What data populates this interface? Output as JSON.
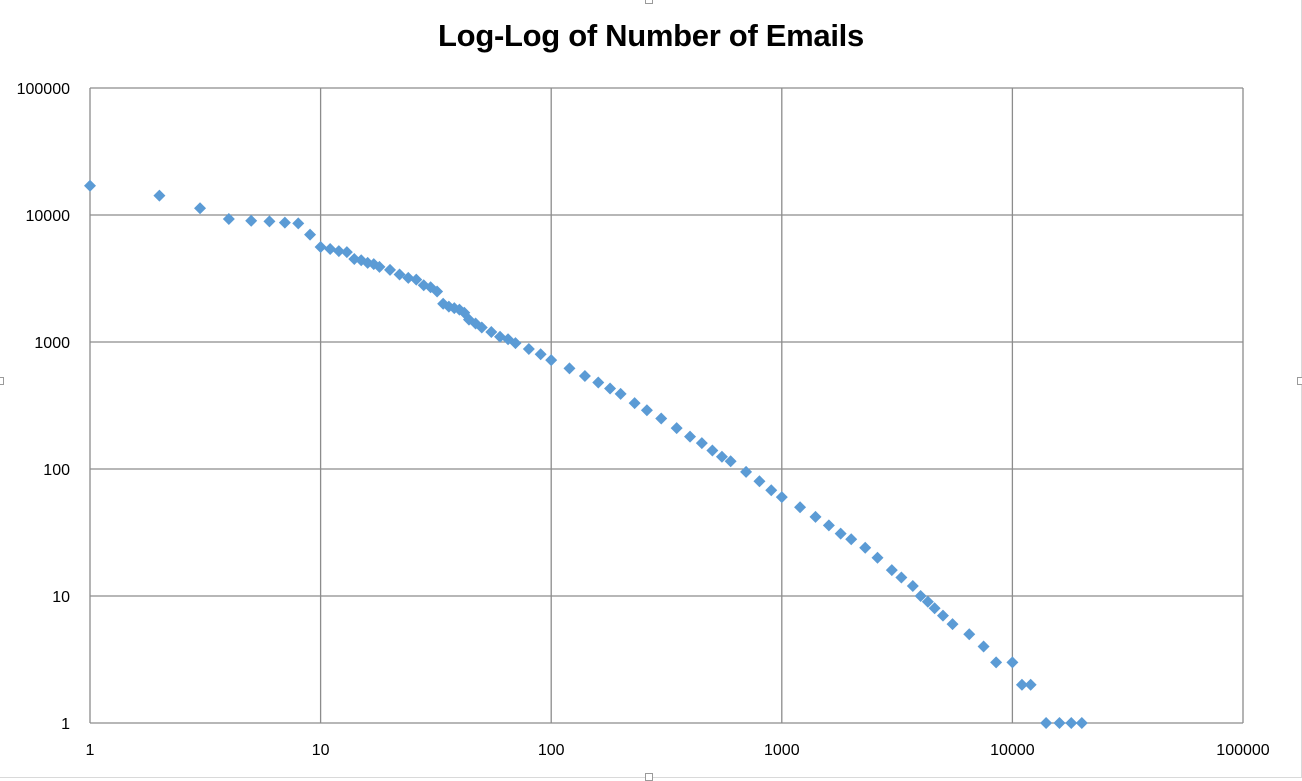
{
  "chart_data": {
    "type": "scatter",
    "title": "Log-Log of Number of Emails",
    "xlabel": "",
    "ylabel": "",
    "x_scale": "log",
    "y_scale": "log",
    "xlim": [
      1,
      100000
    ],
    "ylim": [
      1,
      100000
    ],
    "grid": true,
    "legend": "none",
    "marker": "diamond",
    "colors": {
      "marker": "#5b9bd5",
      "grid": "#8c8c8c"
    },
    "x_ticks": [
      "1",
      "10",
      "100",
      "1000",
      "10000",
      "100000"
    ],
    "y_ticks": [
      "1",
      "10",
      "100",
      "1000",
      "10000",
      "100000"
    ],
    "series": [
      {
        "points": [
          [
            1,
            17000
          ],
          [
            2,
            14200
          ],
          [
            3,
            11300
          ],
          [
            4,
            9300
          ],
          [
            5,
            9000
          ],
          [
            6,
            8900
          ],
          [
            7,
            8700
          ],
          [
            8,
            8600
          ],
          [
            9,
            7000
          ],
          [
            10,
            5600
          ],
          [
            11,
            5400
          ],
          [
            12,
            5200
          ],
          [
            13,
            5100
          ],
          [
            14,
            4500
          ],
          [
            15,
            4400
          ],
          [
            16,
            4200
          ],
          [
            17,
            4100
          ],
          [
            18,
            3900
          ],
          [
            20,
            3700
          ],
          [
            22,
            3400
          ],
          [
            24,
            3200
          ],
          [
            26,
            3100
          ],
          [
            28,
            2800
          ],
          [
            30,
            2700
          ],
          [
            32,
            2500
          ],
          [
            34,
            2000
          ],
          [
            36,
            1900
          ],
          [
            38,
            1850
          ],
          [
            40,
            1800
          ],
          [
            42,
            1700
          ],
          [
            44,
            1500
          ],
          [
            47,
            1400
          ],
          [
            50,
            1300
          ],
          [
            55,
            1200
          ],
          [
            60,
            1100
          ],
          [
            65,
            1050
          ],
          [
            70,
            980
          ],
          [
            80,
            880
          ],
          [
            90,
            800
          ],
          [
            100,
            720
          ],
          [
            120,
            620
          ],
          [
            140,
            540
          ],
          [
            160,
            480
          ],
          [
            180,
            430
          ],
          [
            200,
            390
          ],
          [
            230,
            330
          ],
          [
            260,
            290
          ],
          [
            300,
            250
          ],
          [
            350,
            210
          ],
          [
            400,
            180
          ],
          [
            450,
            160
          ],
          [
            500,
            140
          ],
          [
            550,
            125
          ],
          [
            600,
            115
          ],
          [
            700,
            95
          ],
          [
            800,
            80
          ],
          [
            900,
            68
          ],
          [
            1000,
            60
          ],
          [
            1200,
            50
          ],
          [
            1400,
            42
          ],
          [
            1600,
            36
          ],
          [
            1800,
            31
          ],
          [
            2000,
            28
          ],
          [
            2300,
            24
          ],
          [
            2600,
            20
          ],
          [
            3000,
            16
          ],
          [
            3300,
            14
          ],
          [
            3700,
            12
          ],
          [
            4000,
            10
          ],
          [
            4300,
            9
          ],
          [
            4600,
            8
          ],
          [
            5000,
            7
          ],
          [
            5500,
            6
          ],
          [
            6500,
            5
          ],
          [
            7500,
            4
          ],
          [
            8500,
            3
          ],
          [
            10000,
            3
          ],
          [
            11000,
            2
          ],
          [
            12000,
            2
          ],
          [
            14000,
            1
          ],
          [
            16000,
            1
          ],
          [
            18000,
            1
          ],
          [
            20000,
            1
          ]
        ]
      }
    ]
  }
}
